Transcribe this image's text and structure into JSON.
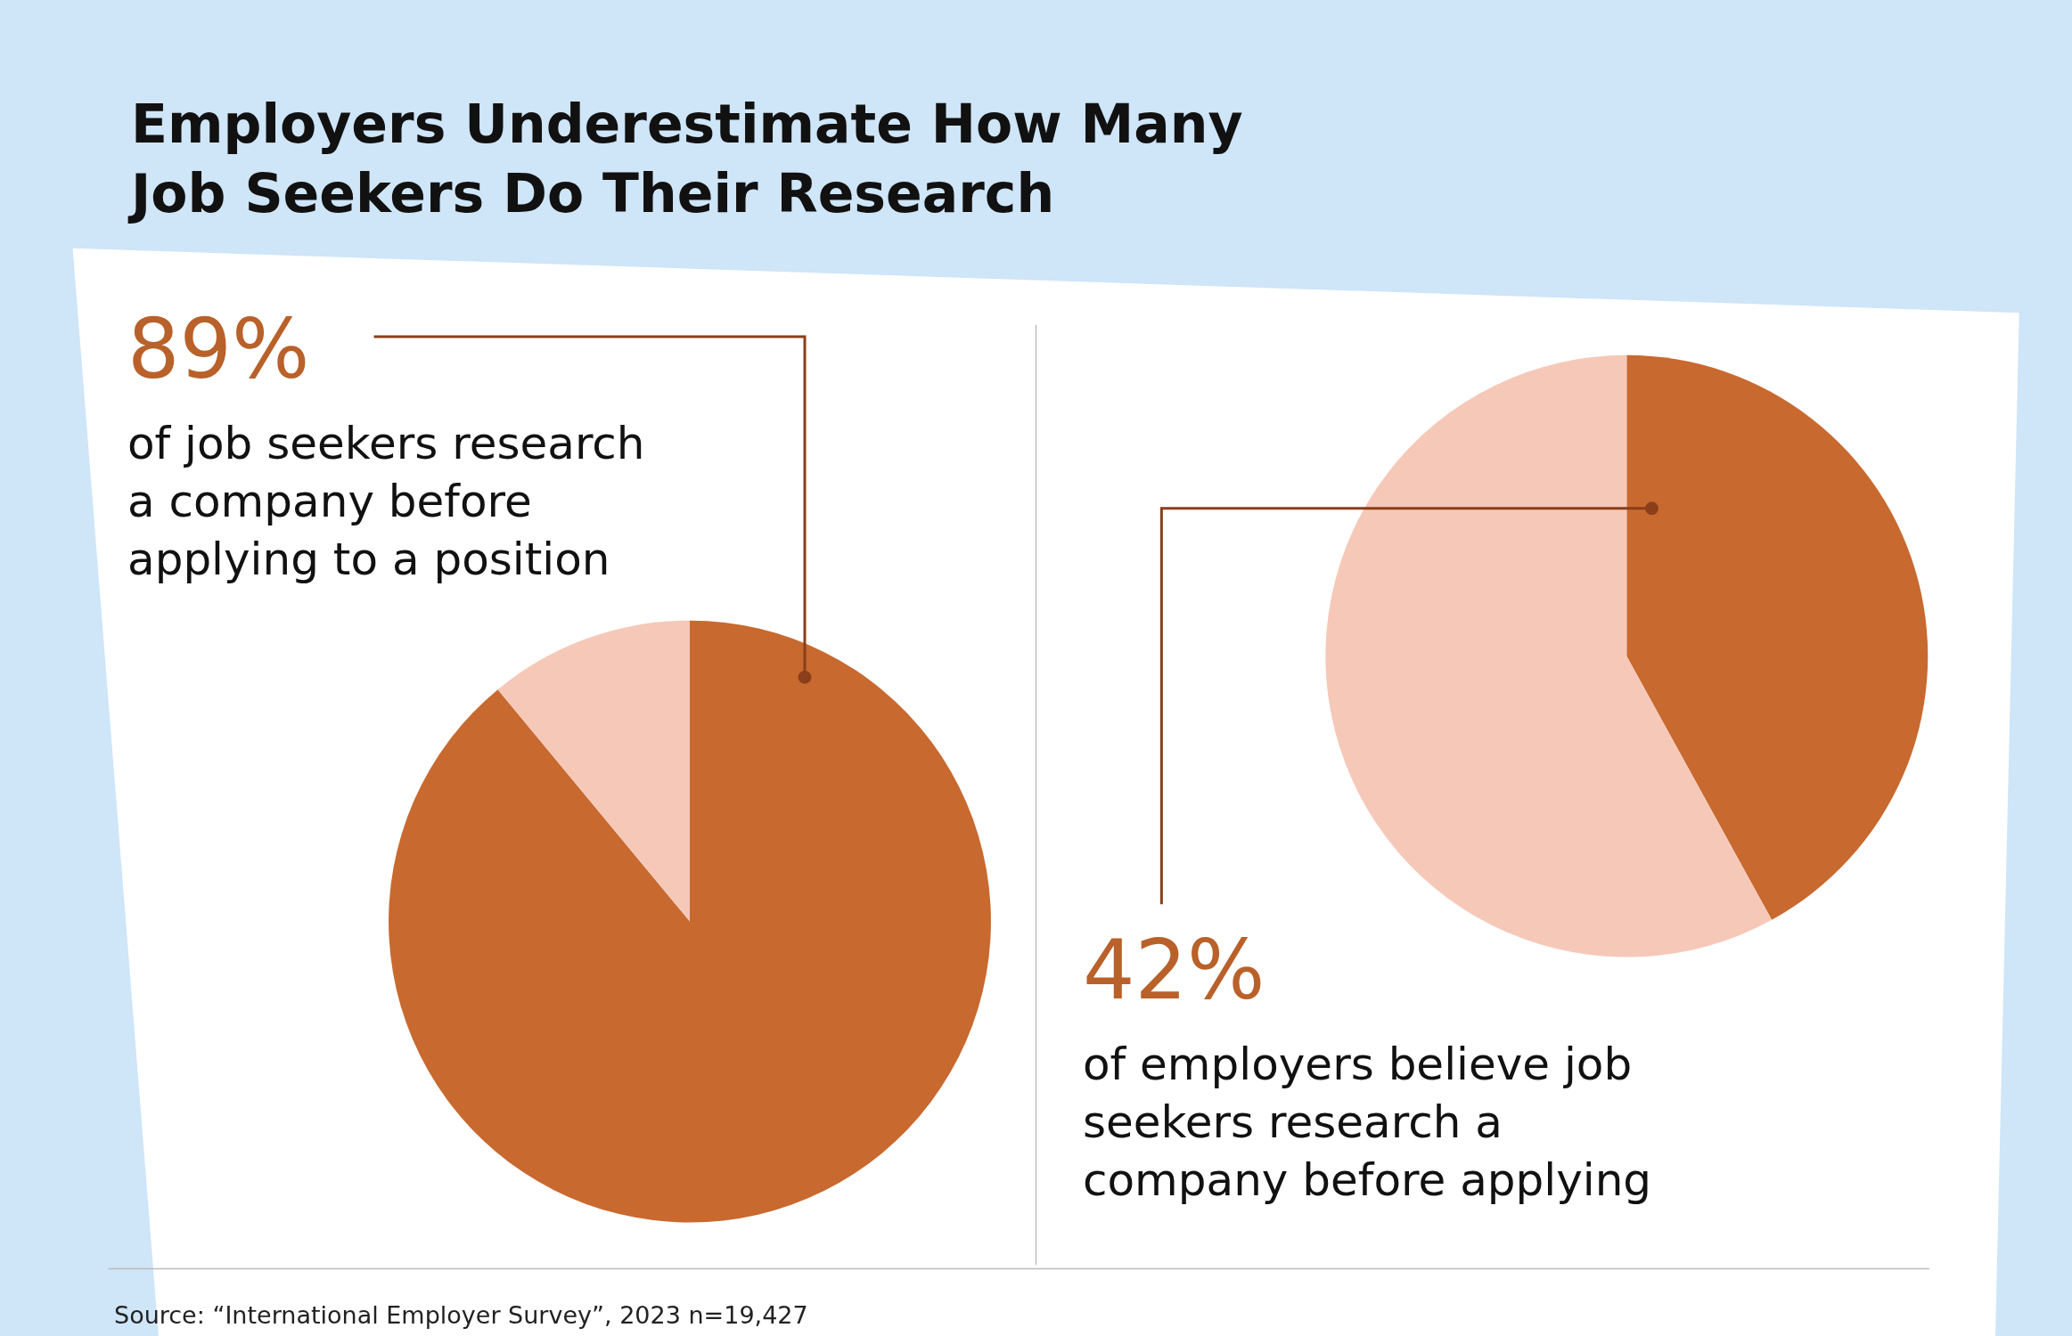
{
  "chart_data": [
    {
      "type": "pie",
      "title": "Employers Underestimate How Many\nJob Seekers Do Their Research",
      "categories": [
        null,
        null
      ],
      "values": [
        89,
        11
      ],
      "colors": [
        "#c8692f",
        "#f6c8b8"
      ],
      "annotations": [
        "89%",
        "of job seekers research\na company before\napplying to a position"
      ]
    },
    {
      "type": "pie",
      "categories": [
        null,
        null
      ],
      "values": [
        42,
        58
      ],
      "colors": [
        "#c8692f",
        "#f6c8b8"
      ],
      "annotations": [
        "42%",
        "of employers believe job\nseekers research a\ncompany before applying",
        "Source: “International Employer Survey”, 2023 n=19,427"
      ]
    }
  ]
}
